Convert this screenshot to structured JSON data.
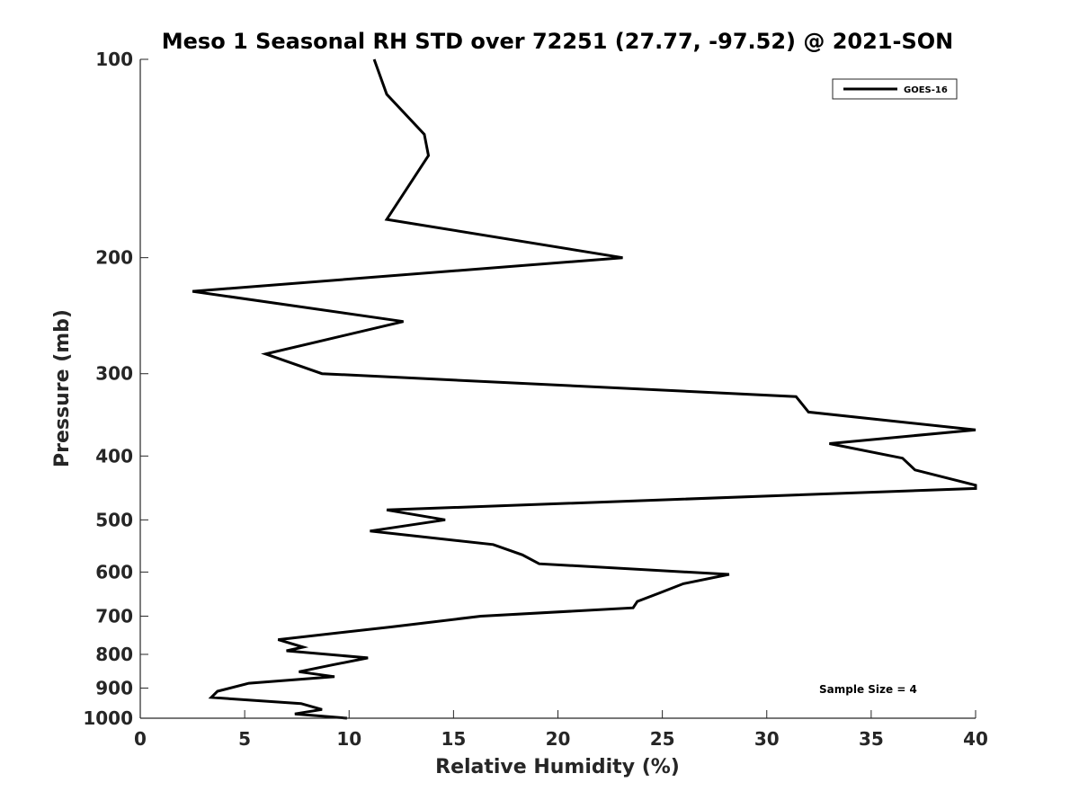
{
  "chart_data": {
    "type": "line",
    "title": "Meso 1 Seasonal RH STD over 72251 (27.77, -97.52) @ 2021-SON",
    "xlabel": "Relative Humidity (%)",
    "ylabel": "Pressure (mb)",
    "xlim": [
      0,
      40
    ],
    "ylim": [
      100,
      1000
    ],
    "yscale": "log",
    "y_reversed": true,
    "grid": false,
    "legend_position": "top-right",
    "x_ticks": [
      0,
      5,
      10,
      15,
      20,
      25,
      30,
      35,
      40
    ],
    "x_tick_labels": [
      "0",
      "5",
      "10",
      "15",
      "20",
      "25",
      "30",
      "35",
      "40"
    ],
    "y_ticks": [
      100,
      200,
      300,
      400,
      500,
      600,
      700,
      800,
      900,
      1000
    ],
    "y_tick_labels": [
      "100",
      "200",
      "300",
      "400",
      "500",
      "600",
      "700",
      "800",
      "900",
      "1000"
    ],
    "series": [
      {
        "name": "GOES-16",
        "color": "#000000",
        "x": [
          11.2,
          11.8,
          13.6,
          13.8,
          11.8,
          23.1,
          2.5,
          12.6,
          6.0,
          8.7,
          31.4,
          32.0,
          40.0,
          33.0,
          36.5,
          37.1,
          40.0,
          40.0,
          11.8,
          14.6,
          11.0,
          16.9,
          18.3,
          19.1,
          28.2,
          26.0,
          24.9,
          23.8,
          23.6,
          16.3,
          12.0,
          6.6,
          7.8,
          7.0,
          10.9,
          9.2,
          7.6,
          9.3,
          5.2,
          3.7,
          3.4,
          7.7,
          8.7,
          7.4,
          9.9
        ],
        "y": [
          100,
          113,
          130,
          140,
          175,
          200,
          225,
          250,
          280,
          300,
          325,
          343,
          365,
          383,
          403,
          420,
          443,
          448,
          483,
          500,
          520,
          545,
          565,
          583,
          605,
          625,
          645,
          665,
          680,
          700,
          727,
          760,
          780,
          790,
          810,
          830,
          850,
          865,
          885,
          910,
          930,
          950,
          970,
          985,
          1000
        ]
      }
    ],
    "annotations": [
      "Sample Size = 4"
    ]
  }
}
